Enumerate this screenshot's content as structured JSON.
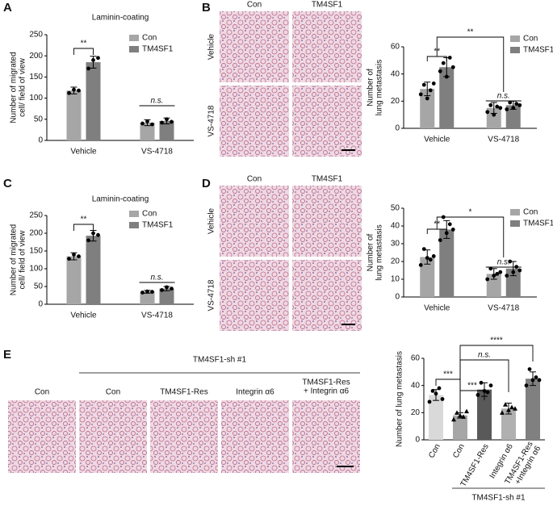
{
  "panel_labels": [
    "A",
    "B",
    "C",
    "D",
    "E"
  ],
  "image_panels": [
    {
      "columns": [
        "Con",
        "TM4SF1"
      ],
      "rows": [
        "Vehicle",
        "VS-4718"
      ]
    },
    {
      "columns": [
        "Con",
        "TM4SF1"
      ],
      "rows": [
        "Vehicle",
        "VS-4718"
      ]
    },
    {
      "group": "TM4SF1-sh #1",
      "columns": [
        "Con",
        "Con",
        "TM4SF1-Res",
        "Integrin α6",
        [
          "TM4SF1-Res",
          "+ Integrin α6"
        ]
      ]
    }
  ],
  "chart_data": [
    {
      "type": "bar",
      "title": "Laminin-coating",
      "ylabel": [
        "Number of migrated",
        "cell/ field of view"
      ],
      "categories": [
        "Vehicle",
        "VS-4718"
      ],
      "series": [
        {
          "name": "Con",
          "color": "#a6a6a6",
          "values": [
            118,
            42
          ],
          "errors": [
            8,
            7
          ],
          "points": [
            [
              112,
              120,
              118
            ],
            [
              40,
              45,
              38
            ]
          ]
        },
        {
          "name": "TM4SF1",
          "color": "#7f7f7f",
          "values": [
            185,
            46
          ],
          "errors": [
            14,
            7
          ],
          "points": [
            [
              170,
              190,
              195
            ],
            [
              42,
              50,
              44
            ]
          ]
        }
      ],
      "ylim": [
        0,
        250
      ],
      "yticks": [
        0,
        50,
        100,
        150,
        200,
        250
      ],
      "annotations": [
        "**",
        "n.s."
      ]
    },
    {
      "type": "bar",
      "ylabel": [
        "Number of",
        "lung metastasis"
      ],
      "categories": [
        "Vehicle",
        "VS-4718"
      ],
      "series": [
        {
          "name": "Con",
          "color": "#a6a6a6",
          "values": [
            29,
            15
          ],
          "errors": [
            5,
            4
          ],
          "points": [
            [
              25,
              32,
              22,
              28,
              33
            ],
            [
              12,
              17,
              10,
              16,
              15
            ]
          ]
        },
        {
          "name": "TM4SF1",
          "color": "#7f7f7f",
          "values": [
            45,
            17
          ],
          "errors": [
            7,
            3
          ],
          "points": [
            [
              42,
              48,
              38,
              52,
              45
            ],
            [
              14,
              19,
              15,
              18,
              17
            ]
          ]
        }
      ],
      "ylim": [
        0,
        60
      ],
      "yticks": [
        0,
        20,
        40,
        60
      ],
      "annotations": [
        "**",
        "**",
        "n.s."
      ]
    },
    {
      "type": "bar",
      "title": "Laminin-coating",
      "ylabel": [
        "Number of migrated",
        "cell/ field of view"
      ],
      "categories": [
        "Vehicle",
        "VS-4718"
      ],
      "series": [
        {
          "name": "Con",
          "color": "#a6a6a6",
          "values": [
            135,
            35
          ],
          "errors": [
            10,
            4
          ],
          "points": [
            [
              128,
              140,
              135
            ],
            [
              33,
              36,
              35
            ]
          ]
        },
        {
          "name": "TM4SF1",
          "color": "#7f7f7f",
          "values": [
            193,
            44
          ],
          "errors": [
            15,
            6
          ],
          "points": [
            [
              180,
              200,
              195
            ],
            [
              40,
              48,
              44
            ]
          ]
        }
      ],
      "ylim": [
        0,
        250
      ],
      "yticks": [
        0,
        50,
        100,
        150,
        200,
        250
      ],
      "annotations": [
        "**",
        "n.s."
      ]
    },
    {
      "type": "bar",
      "ylabel": [
        "Number of",
        "lung metastasis"
      ],
      "categories": [
        "Vehicle",
        "VS-4718"
      ],
      "series": [
        {
          "name": "Con",
          "color": "#a6a6a6",
          "values": [
            22.5,
            13
          ],
          "errors": [
            4,
            3
          ],
          "points": [
            [
              18,
              27,
              22,
              21,
              23
            ],
            [
              10,
              16,
              12,
              13,
              14
            ]
          ]
        },
        {
          "name": "TM4SF1",
          "color": "#7f7f7f",
          "values": [
            38,
            16
          ],
          "errors": [
            5,
            4
          ],
          "points": [
            [
              32,
              45,
              36,
              41,
              38
            ],
            [
              12,
              20,
              14,
              17,
              15
            ]
          ]
        }
      ],
      "ylim": [
        0,
        50
      ],
      "yticks": [
        0,
        10,
        20,
        30,
        40,
        50
      ],
      "annotations": [
        "**",
        "*",
        "n.s."
      ]
    },
    {
      "type": "singlebar",
      "ylabel": [
        "Number of lung metastasis"
      ],
      "categories": [
        "Con",
        "Con",
        "TM4SF1-Res",
        "Integrin α6",
        [
          "TM4SF1-Res",
          "+Integrin α6"
        ]
      ],
      "group_label": "TM4SF1-sh #1",
      "colors": [
        "#d9d9d9",
        "#a6a6a6",
        "#595959",
        "#b0b0b0",
        "#808080"
      ],
      "values": [
        33,
        18,
        37,
        23,
        45
      ],
      "errors": [
        4,
        2,
        5,
        4,
        5
      ],
      "points": [
        [
          28,
          36,
          34,
          38,
          30
        ],
        [
          15,
          20,
          18,
          17,
          21
        ],
        [
          33,
          42,
          36,
          35,
          40
        ],
        [
          20,
          26,
          22,
          24,
          23
        ],
        [
          40,
          52,
          44,
          46,
          44
        ]
      ],
      "ylim": [
        0,
        60
      ],
      "yticks": [
        0,
        20,
        40,
        60
      ],
      "annotations": [
        "***",
        "***",
        "n.s.",
        "****"
      ]
    }
  ]
}
